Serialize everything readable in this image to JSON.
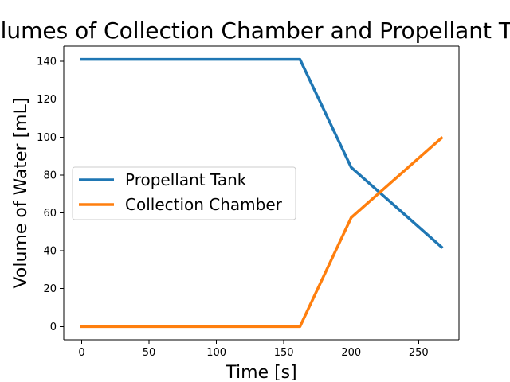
{
  "chart_data": {
    "type": "line",
    "title": "Volumes of Collection Chamber and Propellant Tank",
    "xlabel": "Time [s]",
    "ylabel": "Volume of Water [mL]",
    "xlim": [
      -13.3,
      280
    ],
    "ylim": [
      -7,
      148
    ],
    "xticks": [
      0,
      50,
      100,
      150,
      200,
      250
    ],
    "yticks": [
      0,
      20,
      40,
      60,
      80,
      100,
      120,
      140
    ],
    "grid": false,
    "legend_position": "center-left",
    "series": [
      {
        "name": "Propellant Tank",
        "color": "#1f77b4",
        "x": [
          0,
          162,
          200,
          267
        ],
        "y": [
          141,
          141,
          84,
          42
        ]
      },
      {
        "name": "Collection Chamber",
        "color": "#ff7f0e",
        "x": [
          0,
          162,
          200,
          267
        ],
        "y": [
          0,
          0,
          57.5,
          99.5
        ]
      }
    ]
  }
}
